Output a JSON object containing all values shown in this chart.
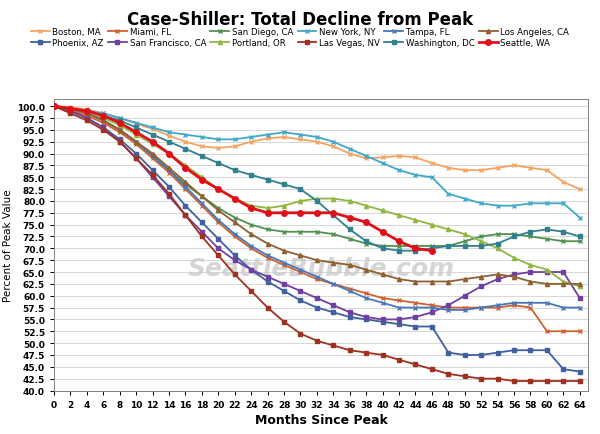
{
  "title": "Case-Shiller: Total Decline from Peak",
  "xlabel": "Months Since Peak",
  "ylabel": "Percent of Peak Value",
  "xlim": [
    0,
    65
  ],
  "ylim": [
    40.0,
    101.5
  ],
  "yticks": [
    40.0,
    42.5,
    45.0,
    47.5,
    50.0,
    52.5,
    55.0,
    57.5,
    60.0,
    62.5,
    65.0,
    67.5,
    70.0,
    72.5,
    75.0,
    77.5,
    80.0,
    82.5,
    85.0,
    87.5,
    90.0,
    92.5,
    95.0,
    97.5,
    100.0
  ],
  "xticks": [
    0,
    2,
    4,
    6,
    8,
    10,
    12,
    14,
    16,
    18,
    20,
    22,
    24,
    26,
    28,
    30,
    32,
    34,
    36,
    38,
    40,
    42,
    44,
    46,
    48,
    50,
    52,
    54,
    56,
    58,
    60,
    62,
    64
  ],
  "series": [
    {
      "name": "Boston, MA",
      "color": "#F4A460",
      "marker": "x",
      "markersize": 3,
      "linewidth": 1.3,
      "x": [
        0,
        2,
        4,
        6,
        8,
        10,
        12,
        14,
        16,
        18,
        20,
        22,
        24,
        26,
        28,
        30,
        32,
        34,
        36,
        38,
        40,
        42,
        44,
        46,
        48,
        50,
        52,
        54,
        56,
        58,
        60,
        62,
        64
      ],
      "y": [
        100,
        99.8,
        99.3,
        98.5,
        97.5,
        96.3,
        95.2,
        93.8,
        92.5,
        91.5,
        91.2,
        91.5,
        92.5,
        93.2,
        93.5,
        93.0,
        92.5,
        91.5,
        90.0,
        89.0,
        89.2,
        89.5,
        89.2,
        88.0,
        87.0,
        86.5,
        86.5,
        87.0,
        87.5,
        87.0,
        86.5,
        84.0,
        82.5
      ]
    },
    {
      "name": "Phoenix, AZ",
      "color": "#4060A0",
      "marker": "s",
      "markersize": 3,
      "linewidth": 1.3,
      "x": [
        0,
        2,
        4,
        6,
        8,
        10,
        12,
        14,
        16,
        18,
        20,
        22,
        24,
        26,
        28,
        30,
        32,
        34,
        36,
        38,
        40,
        42,
        44,
        46,
        48,
        50,
        52,
        54,
        56,
        58,
        60,
        62,
        64
      ],
      "y": [
        100,
        99.0,
        97.5,
        95.5,
        93.0,
        90.0,
        86.5,
        83.0,
        79.0,
        75.5,
        72.0,
        68.5,
        65.5,
        63.0,
        61.0,
        59.0,
        57.5,
        56.5,
        55.5,
        55.0,
        54.5,
        54.0,
        53.5,
        53.5,
        48.0,
        47.5,
        47.5,
        48.0,
        48.5,
        48.5,
        48.5,
        44.5,
        44.0
      ]
    },
    {
      "name": "Miami, FL",
      "color": "#D06030",
      "marker": "x",
      "markersize": 3,
      "linewidth": 1.3,
      "x": [
        0,
        2,
        4,
        6,
        8,
        10,
        12,
        14,
        16,
        18,
        20,
        22,
        24,
        26,
        28,
        30,
        32,
        34,
        36,
        38,
        40,
        42,
        44,
        46,
        48,
        50,
        52,
        54,
        56,
        58,
        60,
        62,
        64
      ],
      "y": [
        100,
        99.2,
        98.0,
        96.5,
        94.5,
        92.0,
        89.0,
        86.0,
        82.5,
        79.0,
        75.5,
        72.5,
        70.0,
        68.0,
        66.5,
        65.0,
        63.5,
        62.5,
        61.5,
        60.5,
        59.5,
        59.0,
        58.5,
        58.0,
        57.5,
        57.5,
        57.5,
        57.5,
        58.0,
        57.5,
        52.5,
        52.5,
        52.5
      ]
    },
    {
      "name": "San Francisco, CA",
      "color": "#7040A0",
      "marker": "s",
      "markersize": 3,
      "linewidth": 1.3,
      "x": [
        0,
        2,
        4,
        6,
        8,
        10,
        12,
        14,
        16,
        18,
        20,
        22,
        24,
        26,
        28,
        30,
        32,
        34,
        36,
        38,
        40,
        42,
        44,
        46,
        48,
        50,
        52,
        54,
        56,
        58,
        60,
        62,
        64
      ],
      "y": [
        100,
        99.0,
        97.5,
        95.5,
        92.5,
        89.0,
        85.0,
        81.0,
        77.0,
        73.5,
        70.0,
        67.5,
        65.5,
        64.0,
        62.5,
        61.0,
        59.5,
        58.0,
        56.5,
        55.5,
        55.0,
        55.0,
        55.5,
        56.5,
        58.0,
        60.0,
        62.0,
        63.5,
        64.5,
        65.0,
        65.0,
        65.0,
        59.5
      ]
    },
    {
      "name": "San Diego, CA",
      "color": "#509050",
      "marker": "x",
      "markersize": 3,
      "linewidth": 1.3,
      "x": [
        0,
        2,
        4,
        6,
        8,
        10,
        12,
        14,
        16,
        18,
        20,
        22,
        24,
        26,
        28,
        30,
        32,
        34,
        36,
        38,
        40,
        42,
        44,
        46,
        48,
        50,
        52,
        54,
        56,
        58,
        60,
        62,
        64
      ],
      "y": [
        100,
        99.5,
        98.5,
        97.0,
        95.0,
        92.5,
        89.5,
        86.5,
        83.5,
        81.0,
        78.5,
        76.5,
        75.0,
        74.0,
        73.5,
        73.5,
        73.5,
        73.0,
        72.0,
        71.0,
        70.5,
        70.5,
        70.5,
        70.5,
        70.5,
        71.5,
        72.5,
        73.0,
        73.0,
        72.5,
        72.0,
        71.5,
        71.5
      ]
    },
    {
      "name": "Portland, OR",
      "color": "#90B840",
      "marker": "^",
      "markersize": 3,
      "linewidth": 1.3,
      "x": [
        0,
        2,
        4,
        6,
        8,
        10,
        12,
        14,
        16,
        18,
        20,
        22,
        24,
        26,
        28,
        30,
        32,
        34,
        36,
        38,
        40,
        42,
        44,
        46,
        48,
        50,
        52,
        54,
        56,
        58,
        60,
        62,
        64
      ],
      "y": [
        100,
        99.5,
        98.5,
        97.5,
        96.0,
        94.0,
        92.0,
        90.0,
        87.5,
        85.0,
        82.5,
        80.5,
        79.0,
        78.5,
        79.0,
        80.0,
        80.5,
        80.5,
        80.0,
        79.0,
        78.0,
        77.0,
        76.0,
        75.0,
        74.0,
        73.0,
        71.5,
        70.0,
        68.0,
        66.5,
        65.5,
        63.0,
        62.0
      ]
    },
    {
      "name": "New York, NY",
      "color": "#40A8C8",
      "marker": "x",
      "markersize": 3,
      "linewidth": 1.3,
      "x": [
        0,
        2,
        4,
        6,
        8,
        10,
        12,
        14,
        16,
        18,
        20,
        22,
        24,
        26,
        28,
        30,
        32,
        34,
        36,
        38,
        40,
        42,
        44,
        46,
        48,
        50,
        52,
        54,
        56,
        58,
        60,
        62,
        64
      ],
      "y": [
        100,
        99.5,
        99.0,
        98.5,
        97.5,
        96.5,
        95.5,
        94.5,
        94.0,
        93.5,
        93.0,
        93.0,
        93.5,
        94.0,
        94.5,
        94.0,
        93.5,
        92.5,
        91.0,
        89.5,
        88.0,
        86.5,
        85.5,
        85.0,
        81.5,
        80.5,
        79.5,
        79.0,
        79.0,
        79.5,
        79.5,
        79.5,
        76.5
      ]
    },
    {
      "name": "Las Vegas, NV",
      "color": "#A03020",
      "marker": "s",
      "markersize": 3,
      "linewidth": 1.3,
      "x": [
        0,
        2,
        4,
        6,
        8,
        10,
        12,
        14,
        16,
        18,
        20,
        22,
        24,
        26,
        28,
        30,
        32,
        34,
        36,
        38,
        40,
        42,
        44,
        46,
        48,
        50,
        52,
        54,
        56,
        58,
        60,
        62,
        64
      ],
      "y": [
        100,
        98.5,
        97.0,
        95.0,
        92.5,
        89.0,
        85.5,
        81.5,
        77.0,
        72.5,
        68.5,
        64.5,
        61.0,
        57.5,
        54.5,
        52.0,
        50.5,
        49.5,
        48.5,
        48.0,
        47.5,
        46.5,
        45.5,
        44.5,
        43.5,
        43.0,
        42.5,
        42.5,
        42.0,
        42.0,
        42.0,
        42.0,
        42.0
      ]
    },
    {
      "name": "Tampa, FL",
      "color": "#4878B8",
      "marker": "x",
      "markersize": 3,
      "linewidth": 1.3,
      "x": [
        0,
        2,
        4,
        6,
        8,
        10,
        12,
        14,
        16,
        18,
        20,
        22,
        24,
        26,
        28,
        30,
        32,
        34,
        36,
        38,
        40,
        42,
        44,
        46,
        48,
        50,
        52,
        54,
        56,
        58,
        60,
        62,
        64
      ],
      "y": [
        100,
        99.5,
        98.5,
        97.0,
        95.0,
        92.5,
        89.5,
        86.5,
        83.0,
        79.5,
        76.0,
        73.0,
        70.5,
        68.5,
        67.0,
        65.5,
        64.0,
        62.5,
        61.0,
        59.5,
        58.5,
        57.5,
        57.5,
        57.5,
        57.0,
        57.0,
        57.5,
        58.0,
        58.5,
        58.5,
        58.5,
        57.5,
        57.5
      ]
    },
    {
      "name": "Washington, DC",
      "color": "#308090",
      "marker": "s",
      "markersize": 3,
      "linewidth": 1.3,
      "x": [
        0,
        2,
        4,
        6,
        8,
        10,
        12,
        14,
        16,
        18,
        20,
        22,
        24,
        26,
        28,
        30,
        32,
        34,
        36,
        38,
        40,
        42,
        44,
        46,
        48,
        50,
        52,
        54,
        56,
        58,
        60,
        62,
        64
      ],
      "y": [
        100,
        99.5,
        99.0,
        98.0,
        97.0,
        95.5,
        94.0,
        92.5,
        91.0,
        89.5,
        88.0,
        86.5,
        85.5,
        84.5,
        83.5,
        82.5,
        80.0,
        77.0,
        74.0,
        71.5,
        70.0,
        69.5,
        69.5,
        70.0,
        70.5,
        70.5,
        70.5,
        71.0,
        72.5,
        73.5,
        74.0,
        73.5,
        72.5
      ]
    },
    {
      "name": "Los Angeles, CA",
      "color": "#906030",
      "marker": "^",
      "markersize": 3,
      "linewidth": 1.3,
      "x": [
        0,
        2,
        4,
        6,
        8,
        10,
        12,
        14,
        16,
        18,
        20,
        22,
        24,
        26,
        28,
        30,
        32,
        34,
        36,
        38,
        40,
        42,
        44,
        46,
        48,
        50,
        52,
        54,
        56,
        58,
        60,
        62,
        64
      ],
      "y": [
        100,
        99.5,
        98.5,
        97.0,
        95.0,
        92.5,
        90.0,
        87.0,
        84.0,
        81.0,
        78.0,
        75.5,
        73.0,
        71.0,
        69.5,
        68.5,
        67.5,
        67.0,
        66.5,
        65.5,
        64.5,
        63.5,
        63.0,
        63.0,
        63.0,
        63.5,
        64.0,
        64.5,
        64.0,
        63.0,
        62.5,
        62.5,
        62.5
      ]
    },
    {
      "name": "Seattle, WA",
      "color": "#E0101A",
      "marker": "o",
      "markersize": 4,
      "linewidth": 2.0,
      "x": [
        0,
        2,
        4,
        6,
        8,
        10,
        12,
        14,
        16,
        18,
        20,
        22,
        24,
        26,
        28,
        30,
        32,
        34,
        36,
        38,
        40,
        42,
        44,
        46
      ],
      "y": [
        100,
        99.5,
        99.0,
        98.0,
        96.5,
        94.5,
        92.5,
        90.0,
        87.0,
        84.5,
        82.5,
        80.5,
        78.5,
        77.5,
        77.5,
        77.5,
        77.5,
        77.5,
        76.5,
        75.5,
        73.5,
        71.5,
        70.0,
        69.5
      ]
    }
  ],
  "legend_order": [
    0,
    1,
    2,
    3,
    4,
    5,
    6,
    7,
    8,
    9,
    10,
    11
  ],
  "watermark": "SeattleBubble.com",
  "bg_color": "#FFFFFF",
  "grid_color": "#C8C8C8",
  "border_color": "#808080"
}
